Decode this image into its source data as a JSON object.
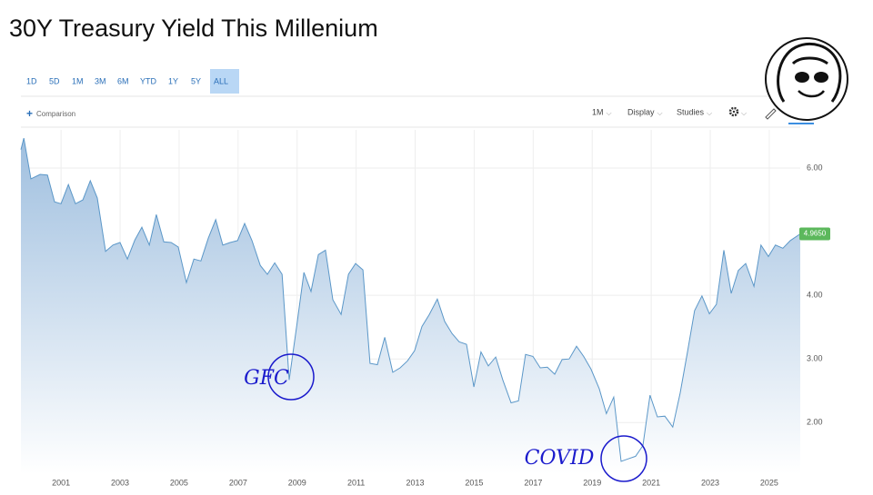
{
  "title": "30Y Treasury Yield This Millenium",
  "range_buttons": [
    "1D",
    "5D",
    "1M",
    "3M",
    "6M",
    "YTD",
    "1Y",
    "5Y",
    "ALL"
  ],
  "comparison": "Comparison",
  "toolbar": [
    "1M",
    "Display",
    "Studies"
  ],
  "chart_data": {
    "type": "area",
    "x": [
      1999.64,
      1999.74,
      1999.98,
      2000.29,
      2000.54,
      2000.78,
      2001.0,
      2001.25,
      2001.49,
      2001.74,
      2001.99,
      2002.23,
      2002.51,
      2002.76,
      2003.0,
      2003.25,
      2003.5,
      2003.74,
      2003.99,
      2004.23,
      2004.48,
      2004.73,
      2004.97,
      2005.25,
      2005.5,
      2005.74,
      2005.99,
      2006.24,
      2006.48,
      2006.73,
      2006.98,
      2007.22,
      2007.47,
      2007.75,
      2007.99,
      2008.24,
      2008.49,
      2008.73,
      2008.98,
      2009.23,
      2009.47,
      2009.72,
      2009.96,
      2010.21,
      2010.49,
      2010.74,
      2010.98,
      2011.23,
      2011.47,
      2011.72,
      2011.97,
      2012.24,
      2012.49,
      2012.74,
      2012.98,
      2013.23,
      2013.48,
      2013.75,
      2014.0,
      2014.25,
      2014.49,
      2014.74,
      2014.99,
      2015.23,
      2015.48,
      2015.73,
      2015.97,
      2016.25,
      2016.5,
      2016.74,
      2016.99,
      2017.24,
      2017.48,
      2017.73,
      2017.98,
      2018.22,
      2018.47,
      2018.71,
      2018.96,
      2019.24,
      2019.48,
      2019.73,
      2019.98,
      2020.22,
      2020.47,
      2020.72,
      2020.96,
      2021.21,
      2021.46,
      2021.73,
      2021.98,
      2022.23,
      2022.47,
      2022.72,
      2022.97,
      2023.21,
      2023.46,
      2023.71,
      2023.95,
      2024.2,
      2024.48,
      2024.72,
      2024.97,
      2025.21,
      2025.46,
      2025.71,
      2026.05
    ],
    "values": [
      6.29,
      6.47,
      5.83,
      5.9,
      5.89,
      5.47,
      5.44,
      5.74,
      5.44,
      5.5,
      5.8,
      5.53,
      4.69,
      4.79,
      4.83,
      4.57,
      4.87,
      5.07,
      4.79,
      5.27,
      4.84,
      4.83,
      4.76,
      4.2,
      4.57,
      4.54,
      4.9,
      5.19,
      4.79,
      4.83,
      4.86,
      5.13,
      4.86,
      4.47,
      4.33,
      4.51,
      4.33,
      2.67,
      3.5,
      4.36,
      4.06,
      4.64,
      4.71,
      3.93,
      3.7,
      4.33,
      4.5,
      4.4,
      2.93,
      2.91,
      3.34,
      2.79,
      2.86,
      2.97,
      3.13,
      3.51,
      3.7,
      3.94,
      3.59,
      3.4,
      3.27,
      3.23,
      2.56,
      3.11,
      2.89,
      3.03,
      2.67,
      2.31,
      2.34,
      3.07,
      3.04,
      2.86,
      2.87,
      2.76,
      2.99,
      3.0,
      3.2,
      3.04,
      2.84,
      2.53,
      2.14,
      2.4,
      1.39,
      1.43,
      1.47,
      1.64,
      2.43,
      2.09,
      2.1,
      1.93,
      2.46,
      3.11,
      3.76,
      3.99,
      3.71,
      3.86,
      4.71,
      4.03,
      4.39,
      4.5,
      4.14,
      4.79,
      4.61,
      4.79,
      4.74,
      4.86,
      4.965
    ],
    "last_value_label": "4.9650",
    "color": "#5b97c8",
    "xlim": [
      1999.64,
      2026.05
    ],
    "xticks": [
      2001,
      2003,
      2005,
      2007,
      2009,
      2011,
      2013,
      2015,
      2017,
      2019,
      2021,
      2023,
      2025
    ],
    "ylim": [
      1.19,
      6.6
    ],
    "yticks": [
      {
        "value": 2,
        "label": "2.00"
      },
      {
        "value": 3,
        "label": "3.00"
      },
      {
        "value": 4,
        "label": "4.00"
      },
      {
        "value": 6,
        "label": "6.00"
      }
    ],
    "grid": true,
    "annotations": [
      "GFC",
      "COVID"
    ]
  }
}
